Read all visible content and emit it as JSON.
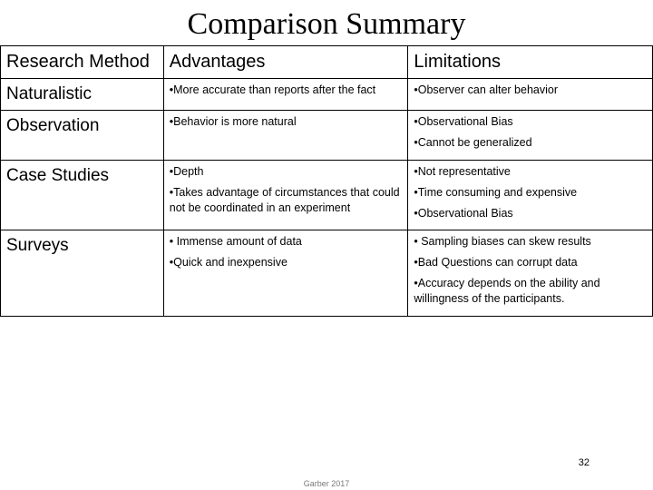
{
  "title": "Comparison Summary",
  "columns": {
    "c0": "Research Method",
    "c1": "Advantages",
    "c2": "Limitations"
  },
  "rows": [
    {
      "method": "Naturalistic",
      "advantages": [
        "More accurate than reports after the fact"
      ],
      "limitations": [
        "Observer can alter behavior"
      ]
    },
    {
      "method": "Observation",
      "advantages": [
        "Behavior is more natural"
      ],
      "limitations": [
        "Observational Bias",
        "Cannot be generalized"
      ]
    },
    {
      "method": "Case Studies",
      "advantages": [
        "Depth",
        "Takes advantage of circumstances that could not be coordinated in an experiment"
      ],
      "limitations": [
        "Not representative",
        "Time consuming and expensive",
        "Observational Bias"
      ]
    },
    {
      "method": "Surveys",
      "advantages": [
        " Immense amount of data",
        "Quick and inexpensive"
      ],
      "limitations": [
        " Sampling biases can skew results",
        "Bad Questions can corrupt data",
        "Accuracy depends on the ability and willingness of the participants."
      ]
    }
  ],
  "footer_credit": "Garber 2017",
  "slide_number": "32",
  "style": {
    "type": "table",
    "background_color": "#ffffff",
    "border_color": "#000000",
    "title_font": "Georgia",
    "title_fontsize_pt": 26,
    "header_fontsize_pt": 15,
    "method_fontsize_pt": 14,
    "body_fontsize_pt": 9,
    "column_widths": [
      0.25,
      0.375,
      0.375
    ],
    "bullet_char": "•"
  }
}
